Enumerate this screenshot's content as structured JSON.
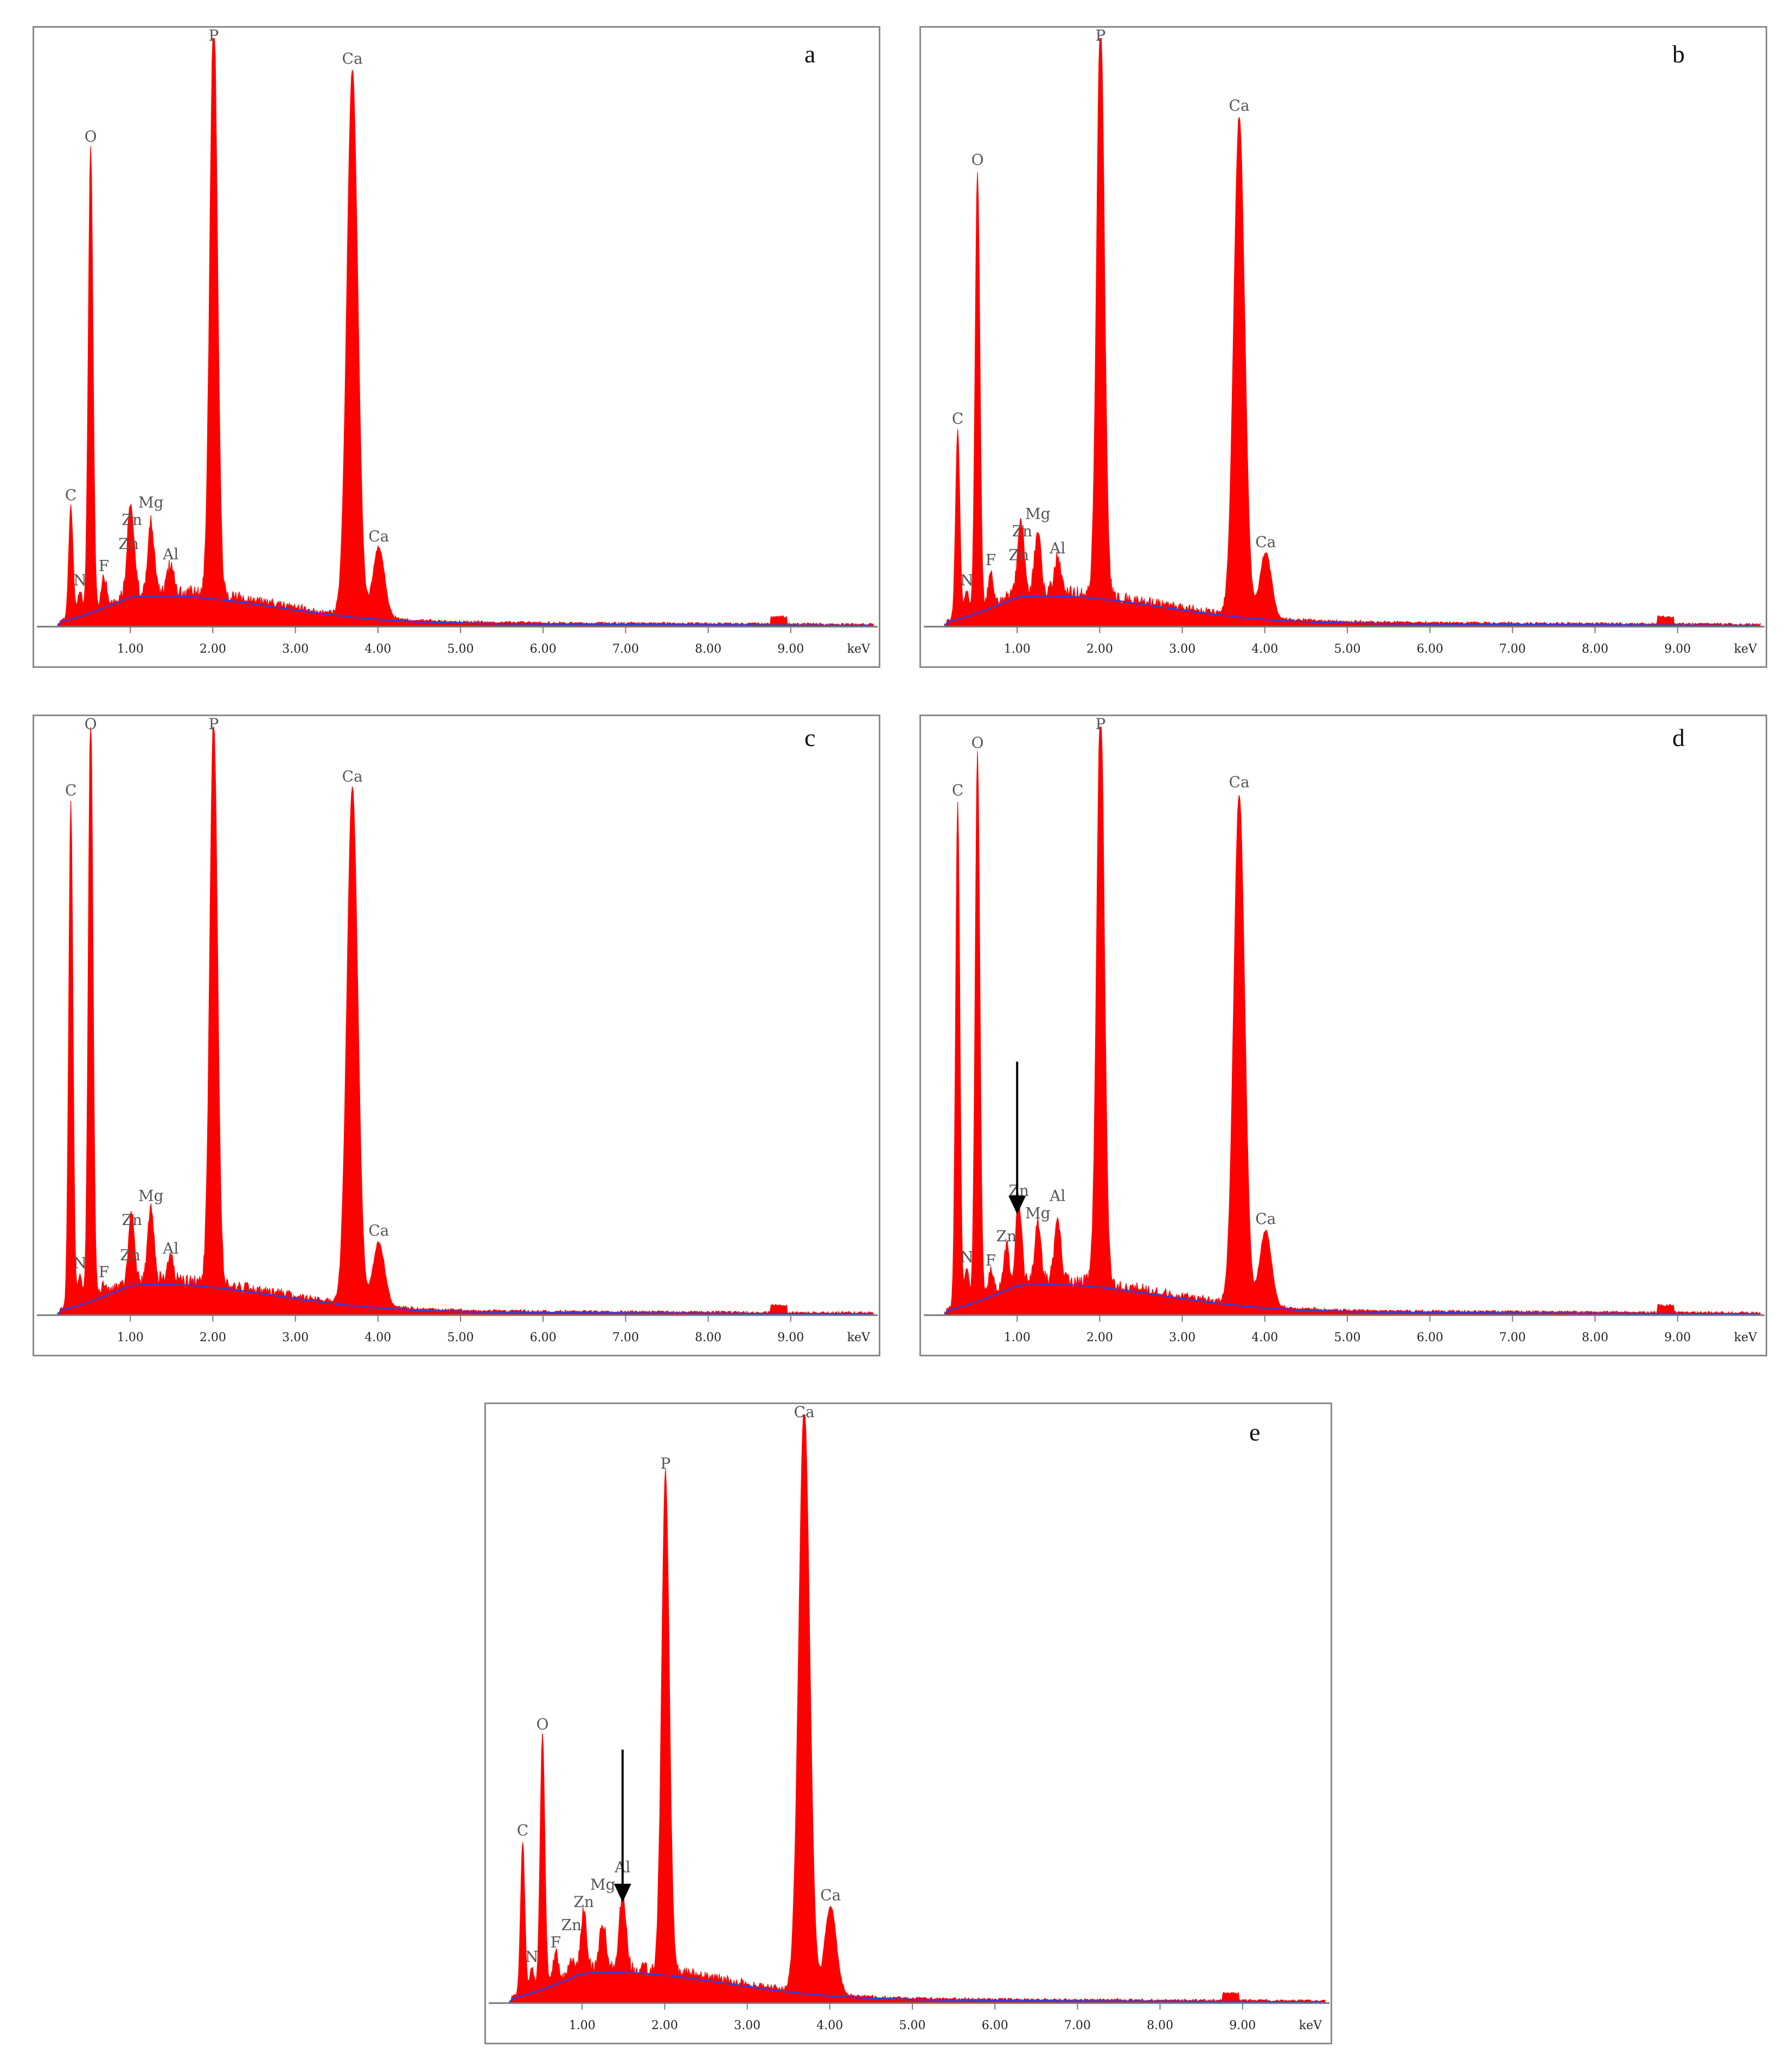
{
  "figure": {
    "colors": {
      "spectrum": "#ff0000",
      "background_curve": "#3b3bd6",
      "axis": "#777777",
      "text": "#222222",
      "peak_label": "#555555",
      "arrow": "#000000"
    }
  },
  "chart_data": [
    {
      "type": "area",
      "panel_label": "a",
      "x_unit": "keV",
      "xlim": [
        0.0,
        10.0
      ],
      "x_ticks": [
        "1.00",
        "2.00",
        "3.00",
        "4.00",
        "5.00",
        "6.00",
        "7.00",
        "8.00",
        "9.00"
      ],
      "grid": false,
      "peaks": [
        {
          "element": "C",
          "x": 0.28,
          "y": 0.19
        },
        {
          "element": "N",
          "x": 0.39,
          "y": 0.04
        },
        {
          "element": "O",
          "x": 0.52,
          "y": 0.79
        },
        {
          "element": "F",
          "x": 0.68,
          "y": 0.05
        },
        {
          "element": "Zn",
          "x": 0.98,
          "y": 0.07
        },
        {
          "element": "Zn",
          "x": 1.02,
          "y": 0.11
        },
        {
          "element": "Mg",
          "x": 1.25,
          "y": 0.12
        },
        {
          "element": "Al",
          "x": 1.49,
          "y": 0.05
        },
        {
          "element": "P",
          "x": 2.01,
          "y": 1.0
        },
        {
          "element": "Ca",
          "x": 3.69,
          "y": 0.93
        },
        {
          "element": "Ca",
          "x": 4.01,
          "y": 0.12
        }
      ],
      "arrows": []
    },
    {
      "type": "area",
      "panel_label": "b",
      "x_unit": "keV",
      "xlim": [
        0.0,
        10.0
      ],
      "x_ticks": [
        "1.00",
        "2.00",
        "3.00",
        "4.00",
        "5.00",
        "6.00",
        "7.00",
        "8.00",
        "9.00"
      ],
      "grid": false,
      "peaks": [
        {
          "element": "C",
          "x": 0.28,
          "y": 0.32
        },
        {
          "element": "N",
          "x": 0.39,
          "y": 0.04
        },
        {
          "element": "O",
          "x": 0.52,
          "y": 0.75
        },
        {
          "element": "F",
          "x": 0.68,
          "y": 0.06
        },
        {
          "element": "Zn",
          "x": 1.02,
          "y": 0.05
        },
        {
          "element": "Zn",
          "x": 1.06,
          "y": 0.09
        },
        {
          "element": "Mg",
          "x": 1.25,
          "y": 0.11
        },
        {
          "element": "Al",
          "x": 1.49,
          "y": 0.06
        },
        {
          "element": "P",
          "x": 2.01,
          "y": 1.0
        },
        {
          "element": "Ca",
          "x": 3.69,
          "y": 0.85
        },
        {
          "element": "Ca",
          "x": 4.01,
          "y": 0.11
        }
      ],
      "arrows": []
    },
    {
      "type": "area",
      "panel_label": "c",
      "x_unit": "keV",
      "xlim": [
        0.0,
        10.0
      ],
      "x_ticks": [
        "1.00",
        "2.00",
        "3.00",
        "4.00",
        "5.00",
        "6.00",
        "7.00",
        "8.00",
        "9.00"
      ],
      "grid": false,
      "peaks": [
        {
          "element": "C",
          "x": 0.28,
          "y": 0.86
        },
        {
          "element": "N",
          "x": 0.39,
          "y": 0.05
        },
        {
          "element": "O",
          "x": 0.52,
          "y": 1.0
        },
        {
          "element": "F",
          "x": 0.68,
          "y": 0.02
        },
        {
          "element": "Zn",
          "x": 1.02,
          "y": 0.09
        },
        {
          "element": "Zn",
          "x": 1.0,
          "y": 0.03
        },
        {
          "element": "Mg",
          "x": 1.25,
          "y": 0.13
        },
        {
          "element": "Al",
          "x": 1.49,
          "y": 0.04
        },
        {
          "element": "P",
          "x": 2.01,
          "y": 0.97
        },
        {
          "element": "Ca",
          "x": 3.69,
          "y": 0.88
        },
        {
          "element": "Ca",
          "x": 4.01,
          "y": 0.11
        }
      ],
      "arrows": []
    },
    {
      "type": "area",
      "panel_label": "d",
      "x_unit": "keV",
      "xlim": [
        0.0,
        10.0
      ],
      "x_ticks": [
        "1.00",
        "2.00",
        "3.00",
        "4.00",
        "5.00",
        "6.00",
        "7.00",
        "8.00",
        "9.00"
      ],
      "grid": false,
      "peaks": [
        {
          "element": "C",
          "x": 0.28,
          "y": 0.86
        },
        {
          "element": "N",
          "x": 0.39,
          "y": 0.06
        },
        {
          "element": "O",
          "x": 0.52,
          "y": 0.93
        },
        {
          "element": "F",
          "x": 0.68,
          "y": 0.04
        },
        {
          "element": "Zn",
          "x": 0.87,
          "y": 0.07
        },
        {
          "element": "Zn",
          "x": 1.02,
          "y": 0.14
        },
        {
          "element": "Mg",
          "x": 1.25,
          "y": 0.1
        },
        {
          "element": "Al",
          "x": 1.49,
          "y": 0.1
        },
        {
          "element": "P",
          "x": 2.01,
          "y": 1.0
        },
        {
          "element": "Ca",
          "x": 3.69,
          "y": 0.87
        },
        {
          "element": "Ca",
          "x": 4.01,
          "y": 0.13
        }
      ],
      "arrows": [
        {
          "x": 1.0,
          "target": "Zn"
        }
      ]
    },
    {
      "type": "area",
      "panel_label": "e",
      "x_unit": "keV",
      "xlim": [
        0.0,
        10.0
      ],
      "x_ticks": [
        "1.00",
        "2.00",
        "3.00",
        "4.00",
        "5.00",
        "6.00",
        "7.00",
        "8.00",
        "9.00"
      ],
      "grid": false,
      "peaks": [
        {
          "element": "C",
          "x": 0.28,
          "y": 0.26
        },
        {
          "element": "N",
          "x": 0.39,
          "y": 0.04
        },
        {
          "element": "O",
          "x": 0.52,
          "y": 0.43
        },
        {
          "element": "F",
          "x": 0.68,
          "y": 0.05
        },
        {
          "element": "Zn",
          "x": 0.87,
          "y": 0.03
        },
        {
          "element": "Zn",
          "x": 1.02,
          "y": 0.1
        },
        {
          "element": "Mg",
          "x": 1.25,
          "y": 0.08
        },
        {
          "element": "Al",
          "x": 1.49,
          "y": 0.13
        },
        {
          "element": "P",
          "x": 2.01,
          "y": 0.85
        },
        {
          "element": "Ca",
          "x": 3.69,
          "y": 1.0
        },
        {
          "element": "Ca",
          "x": 4.01,
          "y": 0.15
        }
      ],
      "arrows": [
        {
          "x": 1.49,
          "target": "Al"
        }
      ]
    }
  ]
}
